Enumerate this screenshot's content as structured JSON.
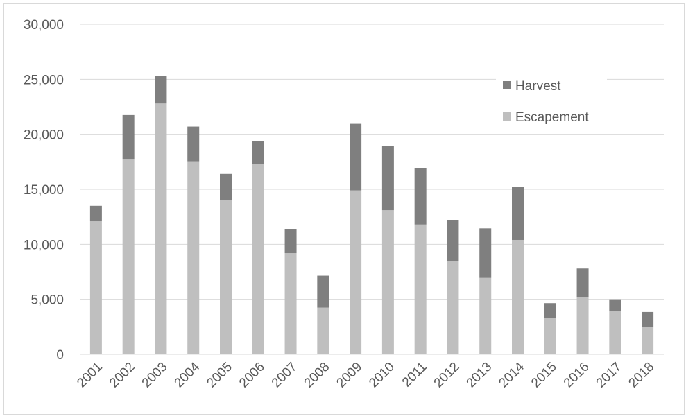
{
  "chart_data": {
    "type": "bar",
    "stacked": true,
    "categories": [
      "2001",
      "2002",
      "2003",
      "2004",
      "2005",
      "2006",
      "2007",
      "2008",
      "2009",
      "2010",
      "2011",
      "2012",
      "2013",
      "2014",
      "2015",
      "2016",
      "2017",
      "2018"
    ],
    "series": [
      {
        "name": "Escapement",
        "color": "#bfbfbf",
        "values": [
          12100,
          17700,
          22800,
          17550,
          14000,
          17300,
          9200,
          4250,
          14900,
          13100,
          11800,
          8500,
          6950,
          10400,
          3300,
          5200,
          3950,
          2500
        ]
      },
      {
        "name": "Harvest",
        "color": "#7f7f7f",
        "values": [
          1400,
          4050,
          2500,
          3150,
          2400,
          2100,
          2200,
          2900,
          6050,
          5850,
          5100,
          3700,
          4500,
          4800,
          1350,
          2600,
          1050,
          1350
        ]
      }
    ],
    "ylim": [
      0,
      30000
    ],
    "yticks": [
      0,
      5000,
      10000,
      15000,
      20000,
      25000,
      30000
    ],
    "ytick_labels": [
      "0",
      "5,000",
      "10,000",
      "15,000",
      "20,000",
      "25,000",
      "30,000"
    ],
    "grid": true,
    "legend": {
      "placement": "top-right",
      "order": [
        "Harvest",
        "Escapement"
      ]
    },
    "title": "",
    "xlabel": "",
    "ylabel": ""
  },
  "colors": {
    "gridline": "#d9d9d9",
    "text": "#595959",
    "border": "#d9d9d9"
  }
}
